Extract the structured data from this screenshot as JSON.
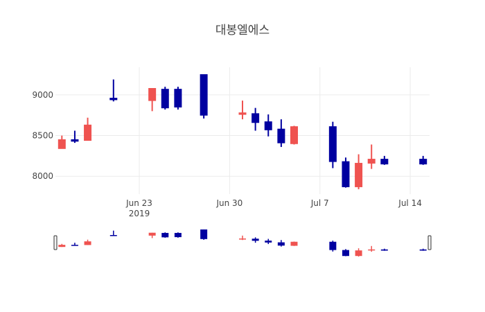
{
  "chart_data": {
    "type": "candlestick",
    "title": "대봉엘에스",
    "increasing_color": "#ef5350",
    "decreasing_color": "#0000a0",
    "grid": true,
    "rangeslider": true,
    "yticks": [
      8000,
      8500,
      9000
    ],
    "ylim": [
      7780,
      9340
    ],
    "xticks": [
      {
        "label": "Jun 23",
        "date": "2019-06-23",
        "sublabel": "2019"
      },
      {
        "label": "Jun 30",
        "date": "2019-06-30"
      },
      {
        "label": "Jul 7",
        "date": "2019-07-07"
      },
      {
        "label": "Jul 14",
        "date": "2019-07-14"
      }
    ],
    "xlim": [
      "2019-06-16T12:00",
      "2019-07-15T12:00"
    ],
    "candles": [
      {
        "date": "2019-06-17",
        "open": 8340,
        "high": 8500,
        "low": 8340,
        "close": 8450
      },
      {
        "date": "2019-06-18",
        "open": 8450,
        "high": 8560,
        "low": 8410,
        "close": 8430
      },
      {
        "date": "2019-06-19",
        "open": 8440,
        "high": 8720,
        "low": 8440,
        "close": 8630
      },
      {
        "date": "2019-06-21",
        "open": 8960,
        "high": 9190,
        "low": 8920,
        "close": 8940
      },
      {
        "date": "2019-06-24",
        "open": 8930,
        "high": 9080,
        "low": 8800,
        "close": 9080
      },
      {
        "date": "2019-06-25",
        "open": 9070,
        "high": 9100,
        "low": 8820,
        "close": 8840
      },
      {
        "date": "2019-06-26",
        "open": 9070,
        "high": 9100,
        "low": 8820,
        "close": 8850
      },
      {
        "date": "2019-06-28",
        "open": 9250,
        "high": 9250,
        "low": 8710,
        "close": 8750
      },
      {
        "date": "2019-07-01",
        "open": 8760,
        "high": 8930,
        "low": 8700,
        "close": 8780
      },
      {
        "date": "2019-07-02",
        "open": 8770,
        "high": 8840,
        "low": 8560,
        "close": 8660
      },
      {
        "date": "2019-07-03",
        "open": 8670,
        "high": 8760,
        "low": 8490,
        "close": 8570
      },
      {
        "date": "2019-07-04",
        "open": 8580,
        "high": 8700,
        "low": 8360,
        "close": 8410
      },
      {
        "date": "2019-07-05",
        "open": 8400,
        "high": 8620,
        "low": 8390,
        "close": 8610
      },
      {
        "date": "2019-07-08",
        "open": 8610,
        "high": 8670,
        "low": 8100,
        "close": 8180
      },
      {
        "date": "2019-07-09",
        "open": 8180,
        "high": 8230,
        "low": 7860,
        "close": 7870
      },
      {
        "date": "2019-07-10",
        "open": 7870,
        "high": 8270,
        "low": 7840,
        "close": 8160
      },
      {
        "date": "2019-07-11",
        "open": 8160,
        "high": 8390,
        "low": 8090,
        "close": 8210
      },
      {
        "date": "2019-07-12",
        "open": 8210,
        "high": 8250,
        "low": 8140,
        "close": 8150
      },
      {
        "date": "2019-07-15",
        "open": 8210,
        "high": 8250,
        "low": 8140,
        "close": 8150
      }
    ]
  }
}
